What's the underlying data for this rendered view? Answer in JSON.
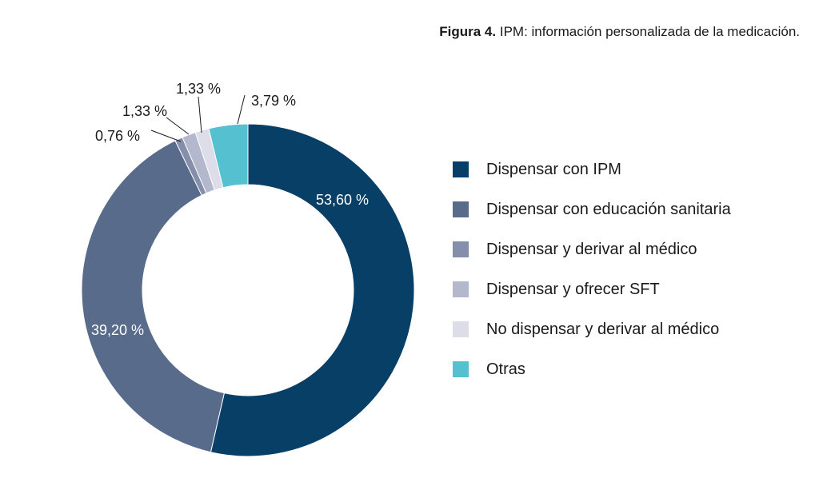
{
  "caption": {
    "label": "Figura 4.",
    "text": "IPM: información personalizada de la medicación."
  },
  "chart_data": {
    "type": "pie",
    "variant": "donut",
    "categories": [
      "Dispensar con IPM",
      "Dispensar con educación sanitaria",
      "Dispensar y derivar al médico",
      "Dispensar y ofrecer SFT",
      "No dispensar y derivar al médico",
      "Otras"
    ],
    "values": [
      53.6,
      39.2,
      0.76,
      1.33,
      1.33,
      3.79
    ],
    "value_labels": [
      "53,60 %",
      "39,20 %",
      "0,76 %",
      "1,33 %",
      "1,33 %",
      "3,79 %"
    ],
    "colors": [
      "#073f66",
      "#596b8b",
      "#858fab",
      "#b4b8cd",
      "#dcdde8",
      "#55c0d0"
    ],
    "label_colors": [
      "#ffffff",
      "#ffffff",
      "#1a1a1a",
      "#1a1a1a",
      "#1a1a1a",
      "#1a1a1a"
    ],
    "legend_position": "right"
  }
}
